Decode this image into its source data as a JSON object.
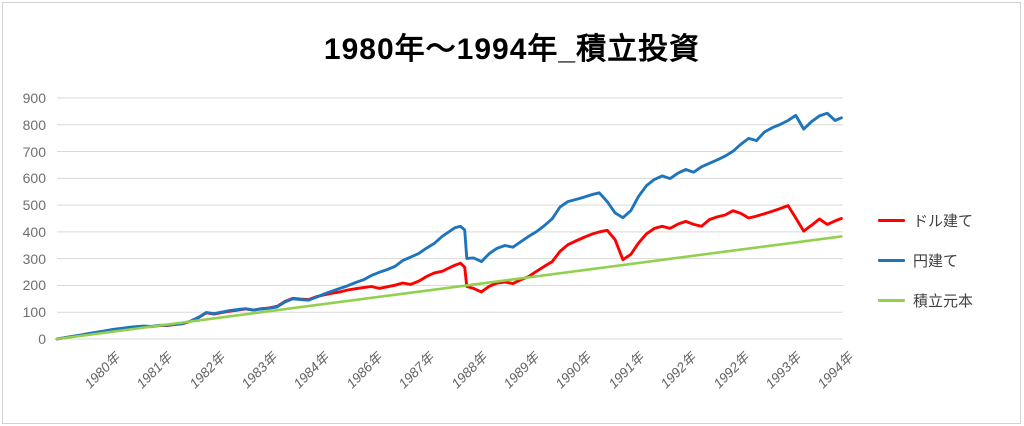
{
  "title": "1980年～1994年_積立投資",
  "chart_data": {
    "type": "line",
    "title": "1980年～1994年_積立投資",
    "xlabel": "",
    "ylabel": "",
    "xlim": [
      1980,
      1995
    ],
    "ylim": [
      0,
      900
    ],
    "y_ticks": [
      0,
      100,
      200,
      300,
      400,
      500,
      600,
      700,
      800,
      900
    ],
    "x_tick_labels": [
      "1980年",
      "1981年",
      "1982年",
      "1983年",
      "1984年",
      "1986年",
      "1987年",
      "1988年",
      "1989年",
      "1990年",
      "1991年",
      "1992年",
      "1992年",
      "1993年",
      "1994年"
    ],
    "grid": "horizontal",
    "gridline_color": "#d9d9d9",
    "legend_position": "right",
    "x": [
      1980.0,
      1980.15,
      1980.3,
      1980.45,
      1980.6,
      1980.75,
      1980.9,
      1981.05,
      1981.2,
      1981.35,
      1981.5,
      1981.65,
      1981.8,
      1981.95,
      1982.1,
      1982.25,
      1982.4,
      1982.55,
      1982.7,
      1982.85,
      1983.0,
      1983.15,
      1983.3,
      1983.45,
      1983.6,
      1983.75,
      1983.9,
      1984.05,
      1984.2,
      1984.35,
      1984.5,
      1984.65,
      1984.8,
      1984.95,
      1985.1,
      1985.25,
      1985.4,
      1985.55,
      1985.7,
      1985.85,
      1986.0,
      1986.15,
      1986.3,
      1986.45,
      1986.6,
      1986.75,
      1986.9,
      1987.05,
      1987.2,
      1987.35,
      1987.5,
      1987.6,
      1987.7,
      1987.78,
      1987.82,
      1987.95,
      1988.1,
      1988.25,
      1988.4,
      1988.55,
      1988.7,
      1988.85,
      1989.0,
      1989.15,
      1989.3,
      1989.45,
      1989.6,
      1989.75,
      1989.9,
      1990.05,
      1990.2,
      1990.35,
      1990.5,
      1990.65,
      1990.8,
      1990.95,
      1991.1,
      1991.25,
      1991.4,
      1991.55,
      1991.7,
      1991.85,
      1992.0,
      1992.15,
      1992.3,
      1992.45,
      1992.6,
      1992.75,
      1992.9,
      1993.05,
      1993.2,
      1993.35,
      1993.5,
      1993.65,
      1993.8,
      1993.95,
      1994.1,
      1994.25,
      1994.4,
      1994.55,
      1994.7,
      1994.85,
      1994.97
    ],
    "series": [
      {
        "key": "usd",
        "name": "ドル建て",
        "color": "#FF0000",
        "values": [
          0,
          5,
          9,
          14,
          19,
          24,
          29,
          34,
          38,
          42,
          45,
          47,
          46,
          50,
          50,
          54,
          57,
          66,
          80,
          98,
          93,
          99,
          104,
          108,
          112,
          108,
          113,
          116,
          122,
          140,
          152,
          149,
          147,
          158,
          165,
          171,
          176,
          183,
          188,
          192,
          196,
          189,
          195,
          201,
          209,
          204,
          216,
          233,
          247,
          253,
          267,
          276,
          283,
          268,
          196,
          189,
          176,
          197,
          209,
          213,
          207,
          221,
          233,
          253,
          271,
          289,
          327,
          352,
          366,
          379,
          391,
          400,
          406,
          371,
          296,
          316,
          359,
          393,
          413,
          421,
          413,
          429,
          439,
          428,
          421,
          446,
          456,
          463,
          479,
          469,
          452,
          459,
          468,
          477,
          487,
          498,
          452,
          403,
          425,
          448,
          428,
          441,
          450
        ]
      },
      {
        "key": "jpy",
        "name": "円建て",
        "color": "#1F75BB",
        "values": [
          0,
          5,
          10,
          15,
          20,
          25,
          30,
          35,
          39,
          43,
          46,
          48,
          47,
          51,
          51,
          55,
          58,
          67,
          81,
          99,
          95,
          101,
          106,
          110,
          113,
          108,
          112,
          115,
          120,
          138,
          150,
          147,
          145,
          156,
          168,
          179,
          189,
          199,
          211,
          221,
          237,
          249,
          259,
          271,
          293,
          306,
          319,
          339,
          357,
          383,
          403,
          416,
          421,
          407,
          301,
          303,
          289,
          319,
          339,
          349,
          343,
          363,
          383,
          401,
          423,
          449,
          493,
          513,
          521,
          529,
          539,
          546,
          513,
          471,
          453,
          479,
          533,
          573,
          596,
          609,
          599,
          619,
          633,
          623,
          643,
          656,
          669,
          683,
          701,
          727,
          749,
          741,
          773,
          789,
          801,
          816,
          835,
          784,
          812,
          833,
          843,
          816,
          826
        ]
      },
      {
        "key": "principal",
        "name": "積立元本",
        "color": "#92D050",
        "x": [
          1980.0,
          1994.97
        ],
        "values": [
          0,
          383
        ]
      }
    ]
  }
}
